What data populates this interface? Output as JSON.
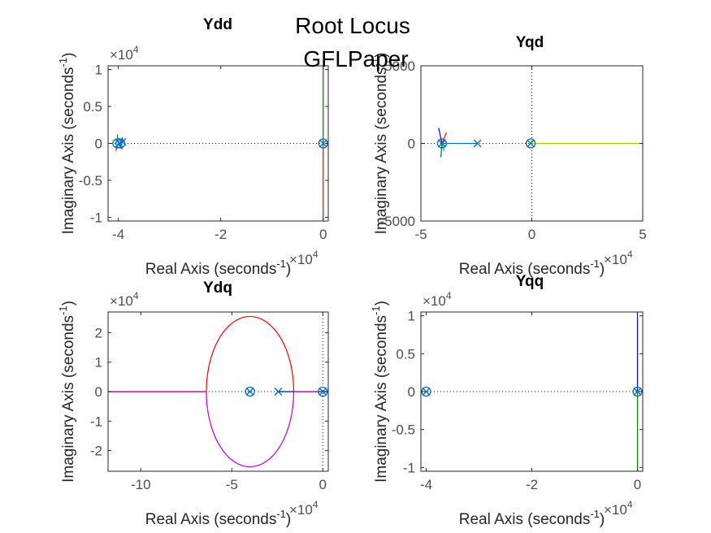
{
  "figure": {
    "suptitle": "Root Locus",
    "subtitle": "GFLPaper"
  },
  "chart_data": [
    {
      "type": "scatter",
      "title": "Ydd",
      "xlabel": "Real Axis (seconds",
      "ylabel": "Imaginary Axis (seconds",
      "label_exponent": "-1",
      "x_multiplier": "×10",
      "x_multiplier_exp": "4",
      "y_multiplier": "×10",
      "y_multiplier_exp": "4",
      "xlim": [
        -4.2,
        0.1
      ],
      "ylim": [
        -1.05,
        1.05
      ],
      "xticks": [
        -4,
        -2,
        0
      ],
      "xtick_labels": [
        "-4",
        "-2",
        "0"
      ],
      "yticks": [
        -1,
        -0.5,
        0,
        0.5,
        1
      ],
      "ytick_labels": [
        "-1",
        "-0.5",
        "0",
        "0.5",
        "1"
      ],
      "poles": [
        [
          -3.98,
          0.0
        ],
        [
          -3.92,
          0.02
        ],
        [
          0.0,
          0.0
        ]
      ],
      "zeros": [
        [
          -4.02,
          0.0
        ],
        [
          -3.96,
          0.0
        ],
        [
          0.0,
          0.0
        ]
      ],
      "branches": [
        {
          "color": "#008000",
          "points": [
            [
              0.0,
              0.0
            ],
            [
              0.0,
              1.05
            ]
          ]
        },
        {
          "color": "#ff0000",
          "points": [
            [
              0.0,
              0.0
            ],
            [
              0.0,
              -1.05
            ]
          ]
        },
        {
          "color": "#008000",
          "points": [
            [
              -4.0,
              0.0
            ],
            [
              -4.02,
              0.12
            ]
          ]
        },
        {
          "color": "#ff0000",
          "points": [
            [
              -4.0,
              0.0
            ],
            [
              -3.92,
              -0.08
            ]
          ]
        },
        {
          "color": "#0000ff",
          "points": [
            [
              -3.95,
              0.0
            ],
            [
              -3.92,
              0.08
            ]
          ]
        },
        {
          "color": "#bf00bf",
          "points": [
            [
              -4.0,
              0.0
            ],
            [
              -4.05,
              -0.1
            ]
          ]
        },
        {
          "color": "#00bfbf",
          "points": [
            [
              -4.0,
              0.0
            ],
            [
              -3.96,
              0.06
            ]
          ]
        }
      ]
    },
    {
      "type": "scatter",
      "title": "Yqd",
      "xlabel": "Real Axis (seconds",
      "ylabel": "Imaginary Axis (seconds",
      "label_exponent": "-1",
      "x_multiplier": "×10",
      "x_multiplier_exp": "4",
      "xlim": [
        -5,
        5
      ],
      "ylim": [
        -5000,
        5000
      ],
      "xticks": [
        -5,
        0,
        5
      ],
      "xtick_labels": [
        "-5",
        "0",
        "5"
      ],
      "yticks": [
        -5000,
        0,
        5000
      ],
      "ytick_labels": [
        "-5000",
        "0",
        "5000"
      ],
      "poles": [
        [
          -4.05,
          0
        ],
        [
          -2.45,
          0
        ],
        [
          -0.05,
          0
        ]
      ],
      "zeros": [
        [
          -4.05,
          0
        ],
        [
          -0.05,
          0
        ]
      ],
      "branches": [
        {
          "color": "#bfbf00",
          "points": [
            [
              0.0,
              0
            ],
            [
              5.0,
              0
            ]
          ]
        },
        {
          "color": "#0072bd",
          "points": [
            [
              -4.05,
              0
            ],
            [
              -2.45,
              0
            ]
          ]
        },
        {
          "color": "#0000ff",
          "points": [
            [
              -4.05,
              0
            ],
            [
              -4.2,
              1000
            ]
          ]
        },
        {
          "color": "#ff0000",
          "points": [
            [
              -4.05,
              0
            ],
            [
              -3.85,
              700
            ]
          ]
        },
        {
          "color": "#008000",
          "points": [
            [
              -4.05,
              0
            ],
            [
              -4.1,
              -900
            ]
          ]
        },
        {
          "color": "#00bfbf",
          "points": [
            [
              -4.05,
              0
            ],
            [
              -3.95,
              -500
            ]
          ]
        }
      ]
    },
    {
      "type": "scatter",
      "title": "Ydq",
      "xlabel": "Real Axis (seconds",
      "ylabel": "Imaginary Axis (seconds",
      "label_exponent": "-1",
      "x_multiplier": "×10",
      "x_multiplier_exp": "4",
      "y_multiplier": "×10",
      "y_multiplier_exp": "4",
      "xlim": [
        -11.8,
        0.3
      ],
      "ylim": [
        -2.7,
        2.7
      ],
      "xticks": [
        -10,
        -5,
        0
      ],
      "xtick_labels": [
        "-10",
        "-5",
        "0"
      ],
      "yticks": [
        -2,
        -1,
        0,
        1,
        2
      ],
      "ytick_labels": [
        "-2",
        "-1",
        "0",
        "1",
        "2"
      ],
      "poles": [
        [
          -4.0,
          0.0
        ],
        [
          -2.45,
          0.0
        ],
        [
          0.0,
          0.0
        ]
      ],
      "zeros": [
        [
          -4.0,
          0.0
        ],
        [
          0.0,
          0.0
        ]
      ],
      "ellipse": {
        "cx": -4.0,
        "cy": 0.0,
        "rx": 2.4,
        "ry": 2.55
      },
      "branches": [
        {
          "color": "#ff0000",
          "points": [
            [
              -6.4,
              0.0
            ],
            [
              -11.8,
              0.0
            ]
          ]
        },
        {
          "color": "#bf00bf",
          "points": [
            [
              -6.4,
              0.0
            ],
            [
              -11.8,
              0.0
            ]
          ]
        },
        {
          "color": "#ff0000",
          "points": [
            [
              -1.6,
              0.0
            ],
            [
              0.3,
              0.0
            ]
          ]
        },
        {
          "color": "#bf00bf",
          "points": [
            [
              -1.6,
              0.0
            ],
            [
              0.3,
              0.0
            ]
          ]
        },
        {
          "color": "#0000ff",
          "points": [
            [
              -2.45,
              0.0
            ],
            [
              -1.6,
              0.0
            ]
          ]
        }
      ]
    },
    {
      "type": "scatter",
      "title": "Yqq",
      "xlabel": "Real Axis (seconds",
      "ylabel": "Imaginary Axis (seconds",
      "label_exponent": "-1",
      "x_multiplier": "×10",
      "x_multiplier_exp": "4",
      "y_multiplier": "×10",
      "y_multiplier_exp": "4",
      "xlim": [
        -4.1,
        0.1
      ],
      "ylim": [
        -1.05,
        1.05
      ],
      "xticks": [
        -4,
        -2,
        0
      ],
      "xtick_labels": [
        "-4",
        "-2",
        "0"
      ],
      "yticks": [
        -1,
        -0.5,
        0,
        0.5,
        1
      ],
      "ytick_labels": [
        "-1",
        "-0.5",
        "0",
        "0.5",
        "1"
      ],
      "poles": [
        [
          -4.0,
          0.0
        ],
        [
          0.0,
          0.0
        ]
      ],
      "zeros": [
        [
          -4.0,
          0.0
        ],
        [
          0.0,
          0.0
        ]
      ],
      "branches": [
        {
          "color": "#0000ff",
          "points": [
            [
              0.0,
              0.0
            ],
            [
              0.0,
              1.05
            ]
          ]
        },
        {
          "color": "#008000",
          "points": [
            [
              0.0,
              0.0
            ],
            [
              0.0,
              -1.05
            ]
          ]
        }
      ]
    }
  ]
}
